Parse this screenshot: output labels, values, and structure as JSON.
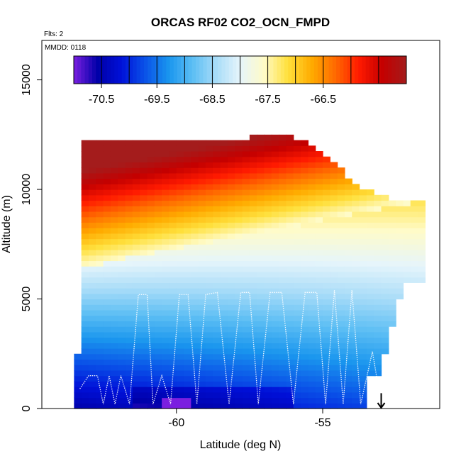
{
  "chart_data": {
    "type": "heatmap",
    "title": "ORCAS RF02 CO2_OCN_FMPD",
    "flights_label": "Flts: 2",
    "date_label": "MMDD: 0118",
    "xlabel": "Latitude (deg N)",
    "ylabel": "Altitude (m)",
    "xlim": [
      -64.6,
      -51.0
    ],
    "ylim": [
      0,
      16800
    ],
    "x_ticks": [
      -60,
      -55
    ],
    "x_tick_labels": [
      "-60",
      "-55"
    ],
    "y_ticks": [
      0,
      5000,
      10000,
      15000
    ],
    "y_tick_labels": [
      "0",
      "5000",
      "10000",
      "15000"
    ],
    "colorbar": {
      "min": -71.0,
      "max": -65.0,
      "ticks": [
        -70.5,
        -69.5,
        -68.5,
        -67.5,
        -66.5
      ],
      "tick_labels": [
        "-70.5",
        "-69.5",
        "-68.5",
        "-67.5",
        "-66.5"
      ],
      "boundaries": [
        -70.5,
        -70.0,
        -69.5,
        -69.0,
        -68.5,
        -68.0,
        -67.5,
        -67.0,
        -66.5,
        -66.0,
        -65.5
      ],
      "colors": [
        "#7b1fe0",
        "#0000a8",
        "#0010d8",
        "#0a52e8",
        "#1a96ee",
        "#5cbef4",
        "#a8dcf8",
        "#e6f5fb",
        "#fffbc8",
        "#ffe03c",
        "#ffac00",
        "#ff6a00",
        "#ff1a00",
        "#c40000",
        "#a41c1c"
      ]
    },
    "field_description_points": {
      "columns": [
        -63.4,
        -62.8,
        -62.3,
        -61.8,
        -61.3,
        -60.8,
        -60.3,
        -59.8,
        -59.3,
        -58.8,
        -58.3,
        -57.8,
        -57.3,
        -56.8,
        -56.3,
        -55.8,
        -55.3,
        -54.8,
        -54.3,
        -53.8,
        -53.3,
        -52.8,
        -52.3,
        -51.8
      ],
      "sample_profile_lat_-60": {
        "altitudes": [
          0,
          1000,
          2000,
          3000,
          4000,
          5000,
          6000,
          7000,
          8000,
          9000,
          10000,
          11000,
          12000
        ],
        "values": [
          -70.2,
          -69.4,
          -69.2,
          -69.0,
          -68.9,
          -68.8,
          -68.7,
          -68.5,
          -68.0,
          -67.4,
          -66.6,
          -66.0,
          -65.4
        ]
      }
    },
    "arrow_marker": {
      "lat": -53.0,
      "alt_top": 700,
      "alt_bottom": 0
    },
    "flight_track": {
      "lat": [
        -63.3,
        -63.0,
        -62.7,
        -62.5,
        -62.3,
        -62.1,
        -61.9,
        -61.6,
        -61.3,
        -61.0,
        -60.8,
        -60.5,
        -60.2,
        -59.9,
        -59.6,
        -59.3,
        -59.0,
        -58.6,
        -58.2,
        -57.8,
        -57.5,
        -57.2,
        -56.8,
        -56.4,
        -56.0,
        -55.6,
        -55.2,
        -54.9,
        -54.6,
        -54.3,
        -54.0,
        -53.7,
        -53.3,
        -53.0
      ],
      "alt": [
        900,
        1500,
        1500,
        200,
        1500,
        200,
        1500,
        200,
        5200,
        5200,
        200,
        1500,
        200,
        5200,
        5200,
        200,
        5200,
        5300,
        200,
        5300,
        5300,
        200,
        5300,
        5300,
        200,
        5300,
        5300,
        200,
        5400,
        200,
        5400,
        200,
        2600,
        200
      ]
    }
  }
}
